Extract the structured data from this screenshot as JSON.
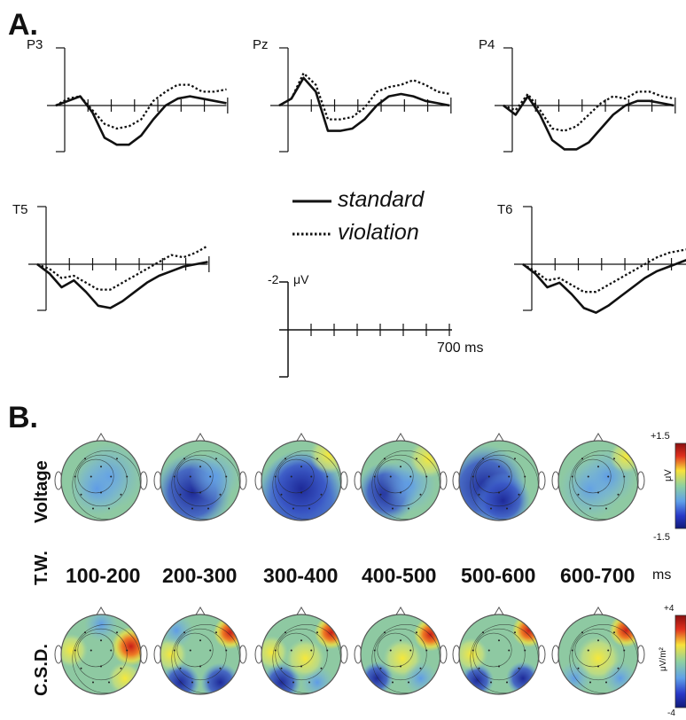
{
  "panel_a": {
    "label": "A.",
    "channels": [
      "P3",
      "Pz",
      "P4",
      "T5",
      "T6"
    ],
    "legend": {
      "standard": "standard",
      "violation": "violation"
    },
    "scale": {
      "amplitude": "-2",
      "unit": "μV",
      "time": "700 ms"
    }
  },
  "panel_b": {
    "label": "B.",
    "rows": {
      "voltage": "Voltage",
      "tw": "T.W.",
      "csd": "C.S.D."
    },
    "windows": [
      "100-200",
      "200-300",
      "300-400",
      "400-500",
      "500-600",
      "600-700"
    ],
    "window_unit": "ms",
    "voltage_scale": {
      "max": "+1.5",
      "min": "-1.5",
      "unit": "μV"
    },
    "csd_scale": {
      "max": "+4",
      "min": "-4",
      "unit": "μV/m²"
    }
  },
  "colors": {
    "map_base": "#8ec9a2",
    "map_blue": "#3f6fd8",
    "map_darkblue": "#1e2a98",
    "map_yellow": "#f2e43a",
    "map_red": "#d4251b"
  },
  "chart_data": [
    {
      "type": "line",
      "channel": "P3",
      "x": [
        0,
        50,
        100,
        150,
        200,
        250,
        300,
        350,
        400,
        450,
        500,
        550,
        600,
        650,
        700
      ],
      "series": [
        {
          "name": "standard",
          "values": [
            0,
            0.2,
            0.4,
            -0.3,
            -1.4,
            -1.7,
            -1.7,
            -1.3,
            -0.6,
            0,
            0.3,
            0.4,
            0.3,
            0.2,
            0.1
          ]
        },
        {
          "name": "violation",
          "values": [
            0,
            0.3,
            0.4,
            -0.2,
            -0.8,
            -1.0,
            -0.9,
            -0.6,
            0.2,
            0.6,
            0.9,
            0.9,
            0.6,
            0.6,
            0.7
          ]
        }
      ]
    },
    {
      "type": "line",
      "channel": "Pz",
      "x": [
        0,
        50,
        100,
        150,
        200,
        250,
        300,
        350,
        400,
        450,
        500,
        550,
        600,
        650,
        700
      ],
      "series": [
        {
          "name": "standard",
          "values": [
            0,
            0.3,
            1.2,
            0.6,
            -1.1,
            -1.1,
            -1.0,
            -0.6,
            0,
            0.4,
            0.5,
            0.4,
            0.2,
            0.1,
            0
          ]
        },
        {
          "name": "violation",
          "values": [
            0,
            0.3,
            1.4,
            0.9,
            -0.6,
            -0.6,
            -0.5,
            -0.1,
            0.6,
            0.8,
            0.9,
            1.1,
            0.9,
            0.6,
            0.5
          ]
        }
      ]
    },
    {
      "type": "line",
      "channel": "P4",
      "x": [
        0,
        50,
        100,
        150,
        200,
        250,
        300,
        350,
        400,
        450,
        500,
        550,
        600,
        650,
        700
      ],
      "series": [
        {
          "name": "standard",
          "values": [
            0,
            -0.4,
            0.4,
            -0.4,
            -1.5,
            -1.9,
            -1.9,
            -1.6,
            -1.0,
            -0.4,
            0,
            0.2,
            0.2,
            0.1,
            0
          ]
        },
        {
          "name": "violation",
          "values": [
            0,
            -0.2,
            0.5,
            -0.2,
            -1.0,
            -1.1,
            -0.9,
            -0.4,
            0.1,
            0.4,
            0.3,
            0.6,
            0.6,
            0.4,
            0.3
          ]
        }
      ]
    },
    {
      "type": "line",
      "channel": "T5",
      "x": [
        0,
        50,
        100,
        150,
        200,
        250,
        300,
        350,
        400,
        450,
        500,
        550,
        600,
        650,
        700
      ],
      "series": [
        {
          "name": "standard",
          "values": [
            0,
            -0.4,
            -1.0,
            -0.7,
            -1.2,
            -1.8,
            -1.9,
            -1.6,
            -1.2,
            -0.8,
            -0.5,
            -0.3,
            -0.1,
            0,
            0.1
          ]
        },
        {
          "name": "violation",
          "values": [
            0,
            -0.2,
            -0.6,
            -0.5,
            -0.8,
            -1.1,
            -1.1,
            -0.8,
            -0.5,
            -0.2,
            0.1,
            0.4,
            0.3,
            0.5,
            0.8
          ]
        }
      ]
    },
    {
      "type": "line",
      "channel": "T6",
      "x": [
        0,
        50,
        100,
        150,
        200,
        250,
        300,
        350,
        400,
        450,
        500,
        550,
        600,
        650,
        700
      ],
      "series": [
        {
          "name": "standard",
          "values": [
            0,
            -0.4,
            -1.0,
            -0.8,
            -1.3,
            -1.9,
            -2.1,
            -1.8,
            -1.4,
            -1.0,
            -0.6,
            -0.3,
            -0.1,
            0.1,
            0.3
          ]
        },
        {
          "name": "violation",
          "values": [
            0,
            -0.3,
            -0.7,
            -0.6,
            -0.9,
            -1.2,
            -1.2,
            -0.9,
            -0.6,
            -0.3,
            0,
            0.3,
            0.5,
            0.6,
            0.7
          ]
        }
      ]
    }
  ]
}
